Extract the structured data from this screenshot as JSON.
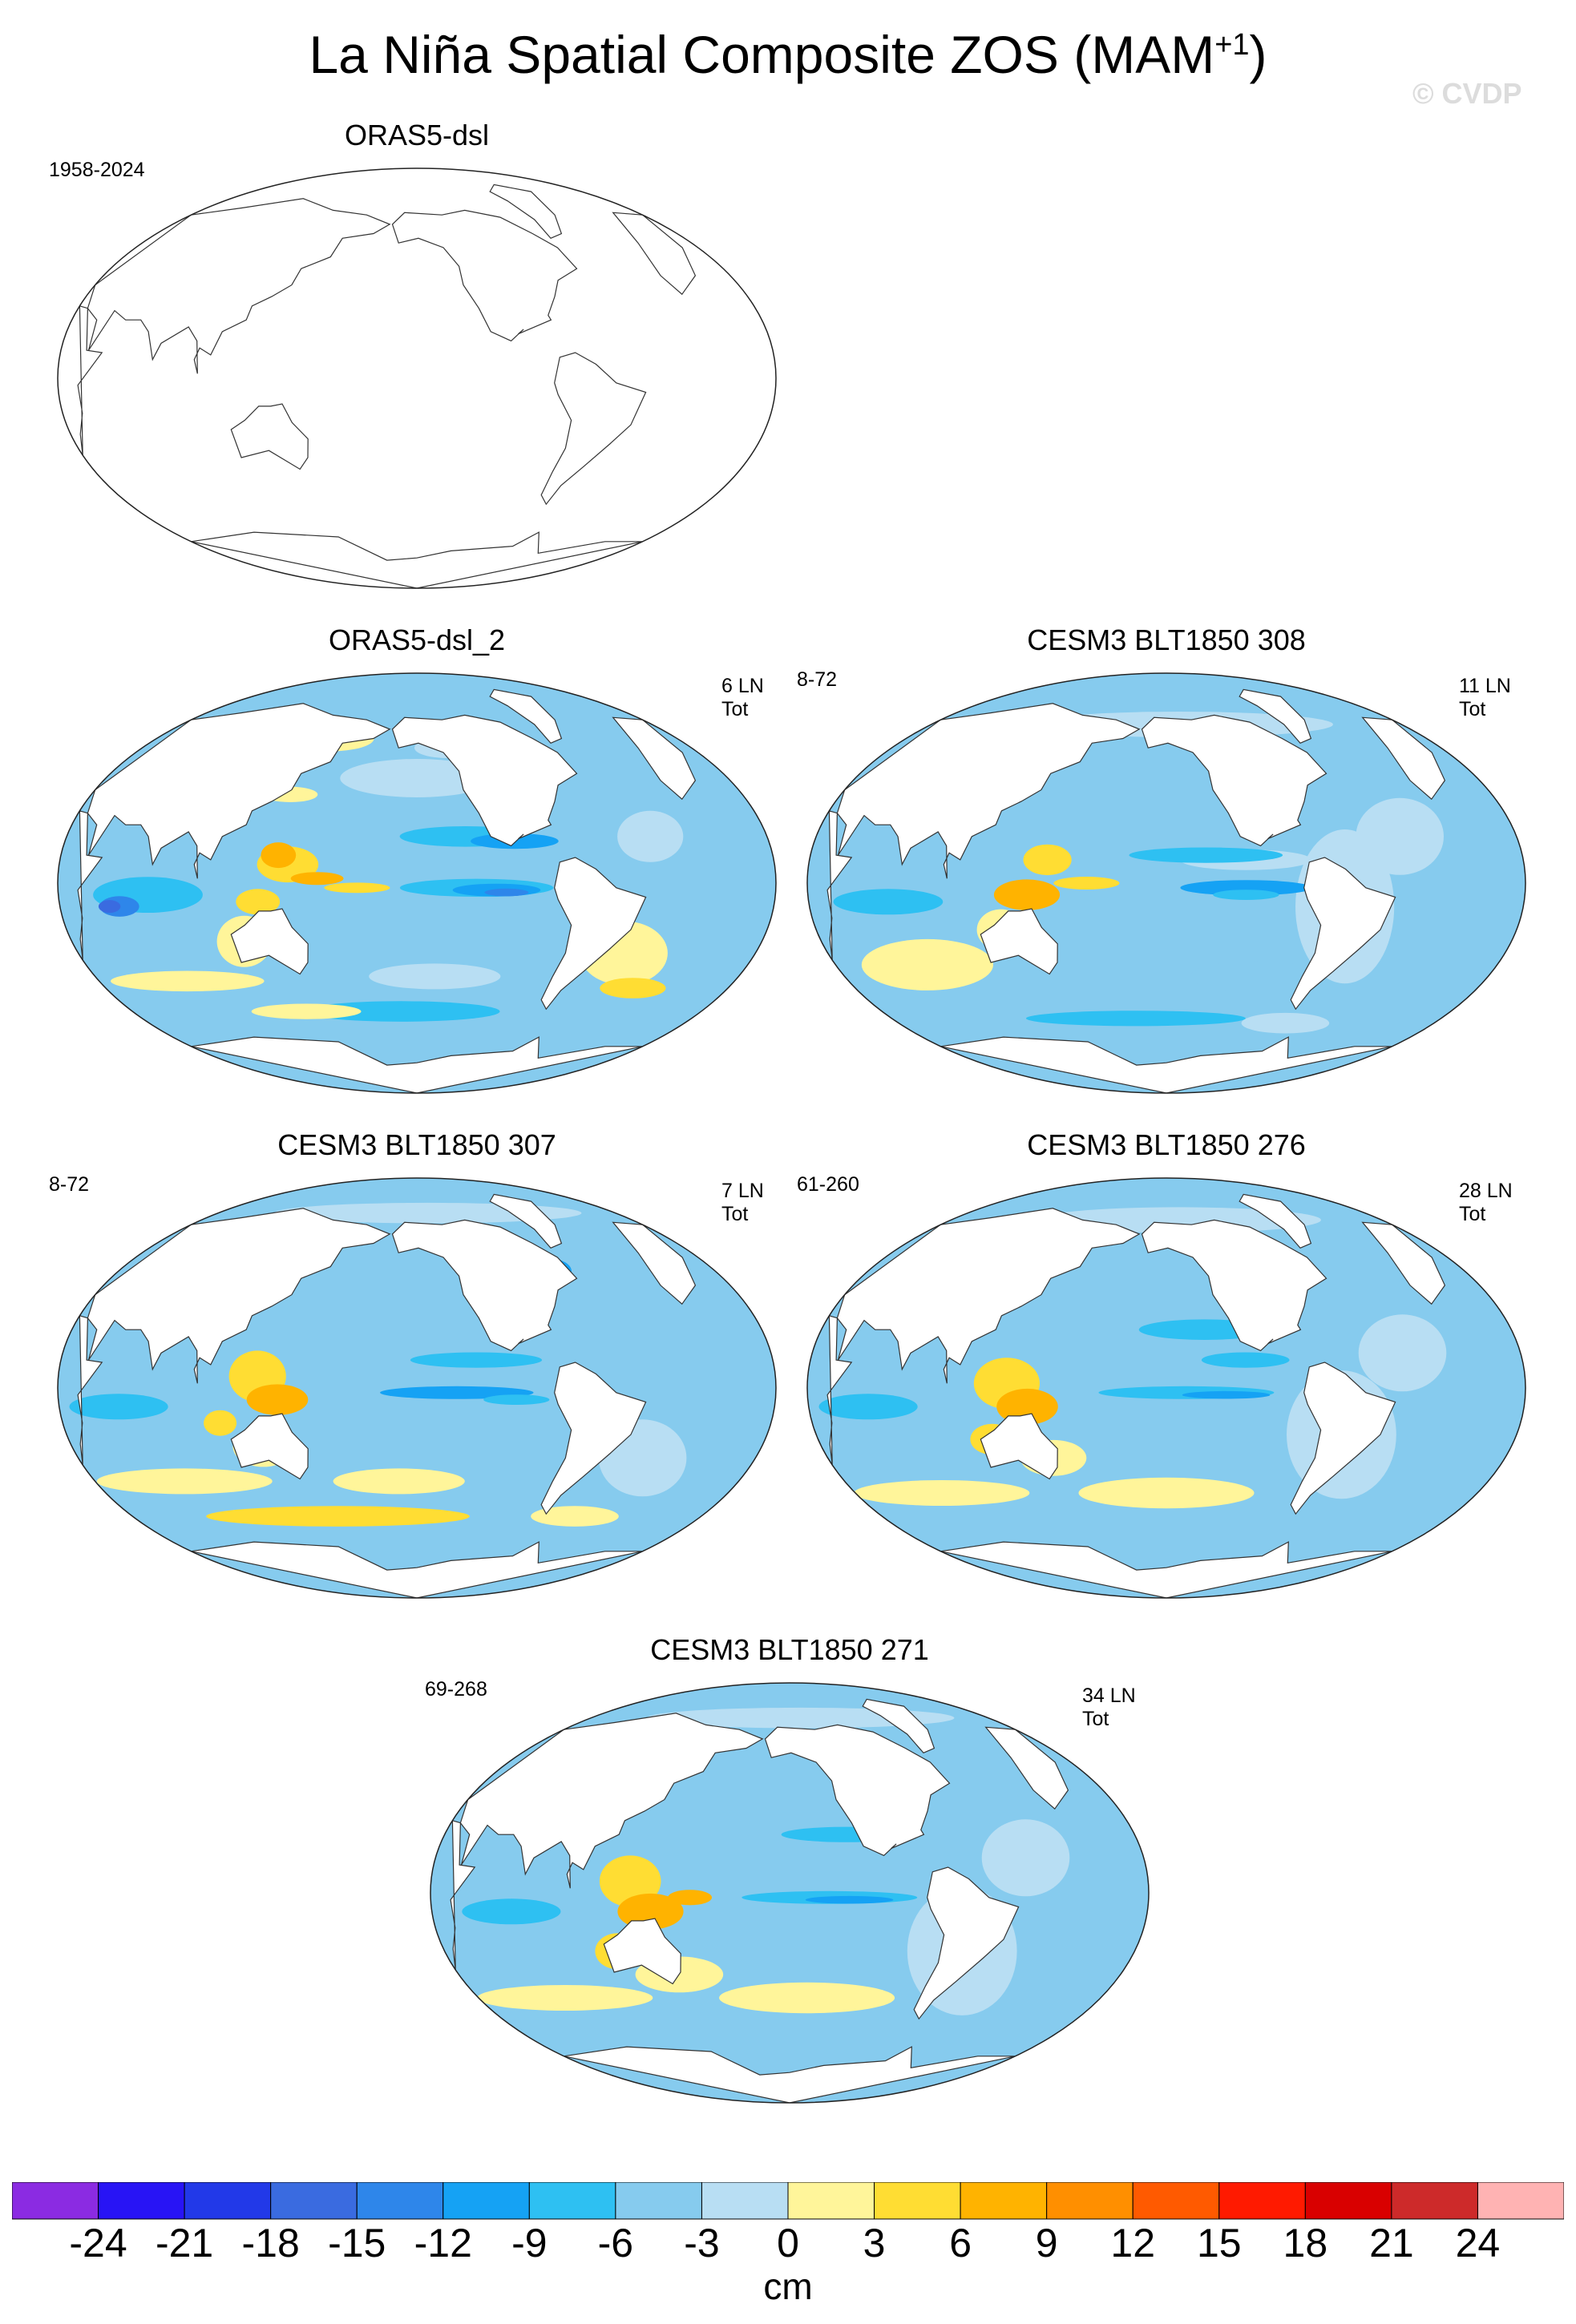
{
  "figure": {
    "title": "La Niña Spatial Composite ZOS (MAM",
    "title_sup": "+1",
    "title_close": ")",
    "watermark": "© CVDP"
  },
  "panels": [
    {
      "id": "p1",
      "title": "ORAS5-dsl",
      "left_label": "1958-2024",
      "right_label": "",
      "pattern": "none"
    },
    {
      "id": "p2",
      "title": "ORAS5-dsl_2",
      "left_label": "",
      "right_label": "6 LN Tot",
      "pattern": "oras2"
    },
    {
      "id": "p3",
      "title": "CESM3 BLT1850 308",
      "left_label": "8-72",
      "right_label": "11 LN Tot",
      "pattern": "cesm308"
    },
    {
      "id": "p4",
      "title": "CESM3 BLT1850 307",
      "left_label": "8-72",
      "right_label": "7 LN Tot",
      "pattern": "cesm307"
    },
    {
      "id": "p5",
      "title": "CESM3 BLT1850 276",
      "left_label": "61-260",
      "right_label": "28 LN Tot",
      "pattern": "cesm276"
    },
    {
      "id": "p6",
      "title": "CESM3 BLT1850 271",
      "left_label": "69-268",
      "right_label": "34 LN Tot",
      "pattern": "cesm271"
    }
  ],
  "colorbar": {
    "unit": "cm",
    "levels": [
      -24,
      -21,
      -18,
      -15,
      -12,
      -9,
      -6,
      -3,
      0,
      3,
      6,
      9,
      12,
      15,
      18,
      21,
      24
    ],
    "labels": [
      "-24",
      "-21",
      "-18",
      "-15",
      "-12",
      "-9",
      "-6",
      "-3",
      "0",
      "3",
      "6",
      "9",
      "12",
      "15",
      "18",
      "21",
      "24"
    ],
    "colors": [
      "#8b2be2",
      "#2814f5",
      "#2239e8",
      "#3a6be0",
      "#2e86ea",
      "#15a2f4",
      "#2ec0f2",
      "#86cbee",
      "#b8def3",
      "#fff59a",
      "#ffdd33",
      "#ffb300",
      "#ff8f00",
      "#ff5a00",
      "#ff1a00",
      "#d90000",
      "#cd2a2a",
      "#ffb3b3"
    ]
  },
  "chart_data": {
    "type": "heatmap",
    "title": "La Niña Spatial Composite ZOS (MAM+1)",
    "units": "cm",
    "contour_levels": [
      -24,
      -21,
      -18,
      -15,
      -12,
      -9,
      -6,
      -3,
      0,
      3,
      6,
      9,
      12,
      15,
      18,
      21,
      24
    ],
    "panels": [
      {
        "name": "ORAS5-dsl",
        "period": "1958-2024",
        "note": "no data shown"
      },
      {
        "name": "ORAS5-dsl_2",
        "events": "6 LN Tot",
        "west_pacific_max_cm": 12,
        "east_pacific_min_cm": -12,
        "indian_ocean_min_cm": -15
      },
      {
        "name": "CESM3 BLT1850 308",
        "years": "8-72",
        "events": "11 LN Tot",
        "west_pacific_max_cm": 12,
        "east_pacific_min_cm": -9
      },
      {
        "name": "CESM3 BLT1850 307",
        "years": "8-72",
        "events": "7 LN Tot",
        "west_pacific_max_cm": 9,
        "east_pacific_min_cm": -9
      },
      {
        "name": "CESM3 BLT1850 276",
        "years": "61-260",
        "events": "28 LN Tot",
        "west_pacific_max_cm": 9,
        "east_pacific_min_cm": -9
      },
      {
        "name": "CESM3 BLT1850 271",
        "years": "69-268",
        "events": "34 LN Tot",
        "west_pacific_max_cm": 9,
        "east_pacific_min_cm": -9
      }
    ]
  }
}
